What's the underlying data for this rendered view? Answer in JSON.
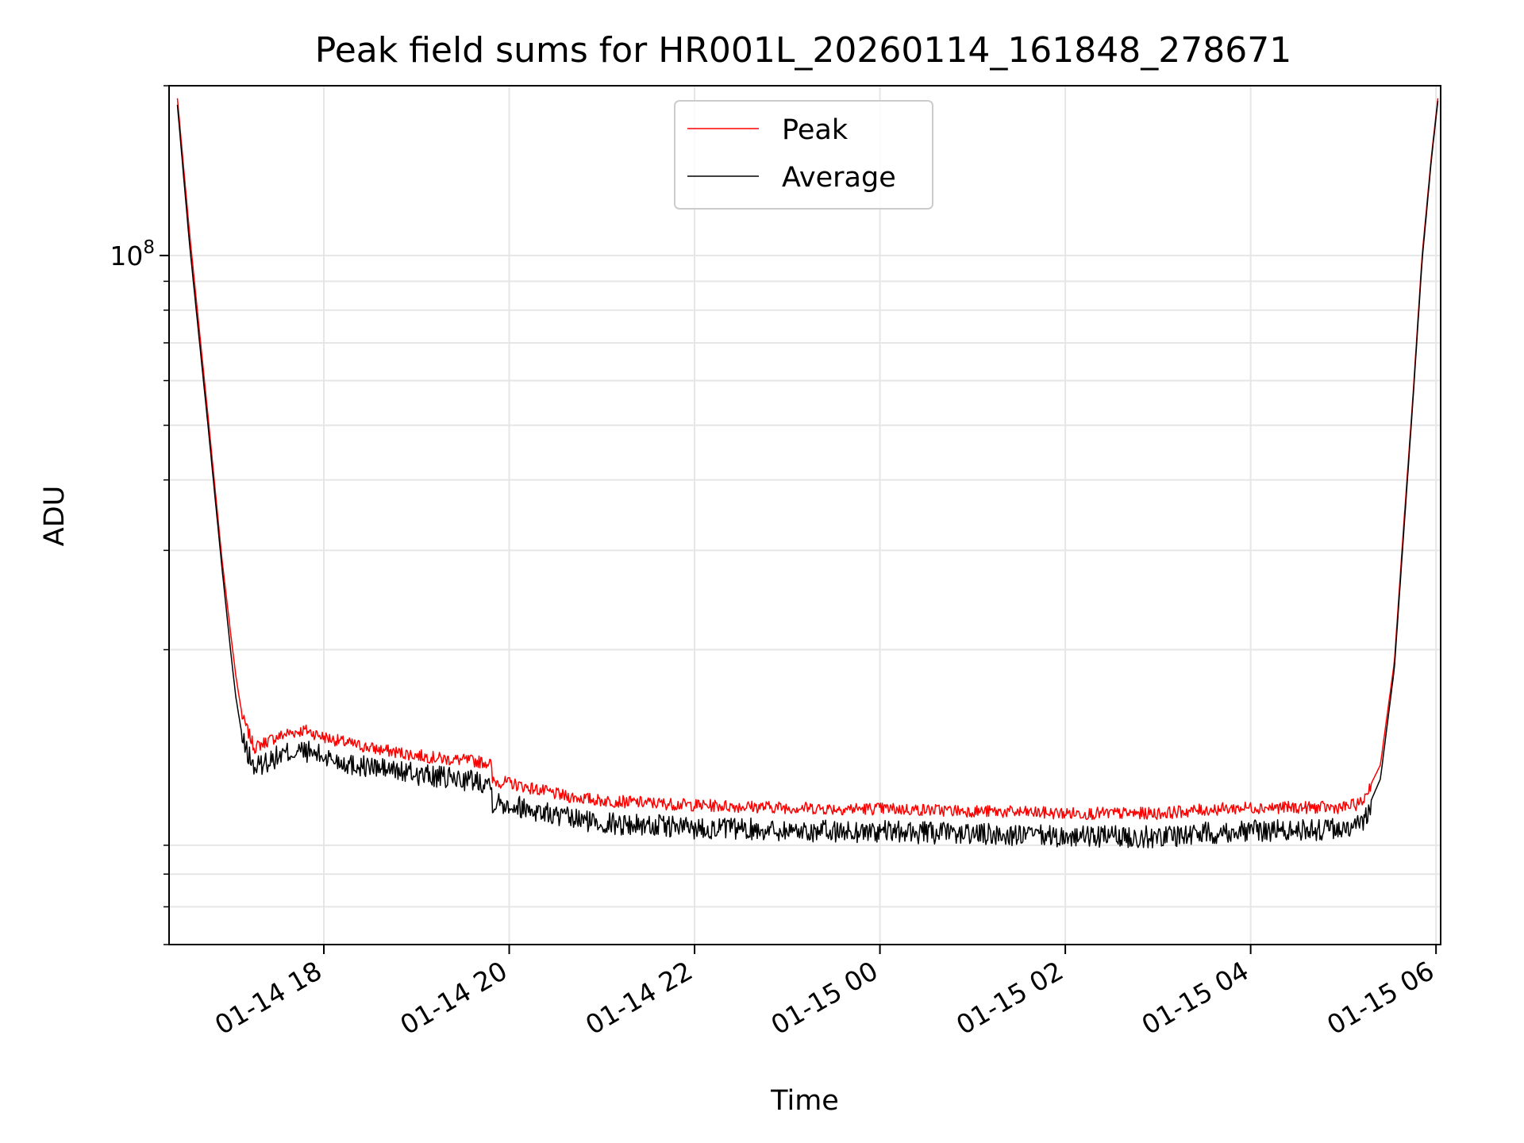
{
  "chart_data": {
    "type": "line",
    "title": "Peak field sums for HR001L_20260114_161848_278671",
    "xlabel": "Time",
    "ylabel": "ADU",
    "yscale": "log",
    "ylim": [
      6000000,
      200000000
    ],
    "xlim_hours": [
      16.33,
      30.05
    ],
    "x_ticks": [
      {
        "label": "01-14 18",
        "hour": 18
      },
      {
        "label": "01-14 20",
        "hour": 20
      },
      {
        "label": "01-14 22",
        "hour": 22
      },
      {
        "label": "01-15 00",
        "hour": 24
      },
      {
        "label": "01-15 02",
        "hour": 26
      },
      {
        "label": "01-15 04",
        "hour": 28
      },
      {
        "label": "01-15 06",
        "hour": 30
      }
    ],
    "y_major_tick": {
      "value": 100000000,
      "base": "10",
      "exponent": "8"
    },
    "y_minor_ticks": [
      6000000,
      7000000,
      8000000,
      9000000,
      20000000,
      30000000,
      40000000,
      50000000,
      60000000,
      70000000,
      80000000,
      90000000,
      200000000
    ],
    "grid": true,
    "legend_position": "upper center",
    "x_units": "hours since 2026-01-14 00:00",
    "series": [
      {
        "name": "Peak",
        "color": "#ff0000",
        "x": [
          16.42,
          16.55,
          16.75,
          16.9,
          17.0,
          17.05,
          17.12,
          17.25,
          17.4,
          17.6,
          17.8,
          18.0,
          18.3,
          18.6,
          19.0,
          19.3,
          19.6,
          19.8,
          19.82,
          20.0,
          20.3,
          20.6,
          21.0,
          21.5,
          22.0,
          22.5,
          23.0,
          23.5,
          24.0,
          24.5,
          25.0,
          25.5,
          26.0,
          26.5,
          27.0,
          27.5,
          28.0,
          28.5,
          29.0,
          29.2,
          29.4,
          29.55,
          29.65,
          29.75,
          29.85,
          29.95,
          30.02
        ],
        "values": [
          190000000,
          110000000,
          52000000,
          29000000,
          21000000,
          18000000,
          15200000,
          13400000,
          13800000,
          14200000,
          14400000,
          14000000,
          13600000,
          13300000,
          13000000,
          12800000,
          12700000,
          12600000,
          11700000,
          11600000,
          11300000,
          11000000,
          10800000,
          10700000,
          10600000,
          10550000,
          10500000,
          10450000,
          10450000,
          10400000,
          10350000,
          10300000,
          10250000,
          10250000,
          10250000,
          10400000,
          10500000,
          10500000,
          10500000,
          10700000,
          12500000,
          19000000,
          33000000,
          56000000,
          100000000,
          150000000,
          190000000
        ]
      },
      {
        "name": "Average",
        "color": "#000000",
        "x": [
          16.42,
          16.55,
          16.75,
          16.9,
          17.0,
          17.05,
          17.12,
          17.25,
          17.4,
          17.6,
          17.8,
          18.0,
          18.3,
          18.6,
          19.0,
          19.3,
          19.6,
          19.8,
          19.82,
          20.0,
          20.3,
          20.6,
          21.0,
          21.5,
          22.0,
          22.5,
          23.0,
          23.5,
          24.0,
          24.5,
          25.0,
          25.5,
          26.0,
          26.5,
          27.0,
          27.5,
          28.0,
          28.5,
          29.0,
          29.2,
          29.4,
          29.55,
          29.65,
          29.75,
          29.85,
          29.95,
          30.02
        ],
        "values": [
          185000000,
          105000000,
          50000000,
          28000000,
          19500000,
          16500000,
          14000000,
          12500000,
          12900000,
          13300000,
          13400000,
          13100000,
          12700000,
          12500000,
          12200000,
          12000000,
          11900000,
          11800000,
          10900000,
          10800000,
          10500000,
          10200000,
          10000000,
          9900000,
          9800000,
          9750000,
          9700000,
          9650000,
          9650000,
          9600000,
          9550000,
          9500000,
          9450000,
          9450000,
          9450000,
          9600000,
          9700000,
          9700000,
          9750000,
          9900000,
          11800000,
          18500000,
          32000000,
          55000000,
          98000000,
          148000000,
          188000000
        ]
      }
    ]
  }
}
